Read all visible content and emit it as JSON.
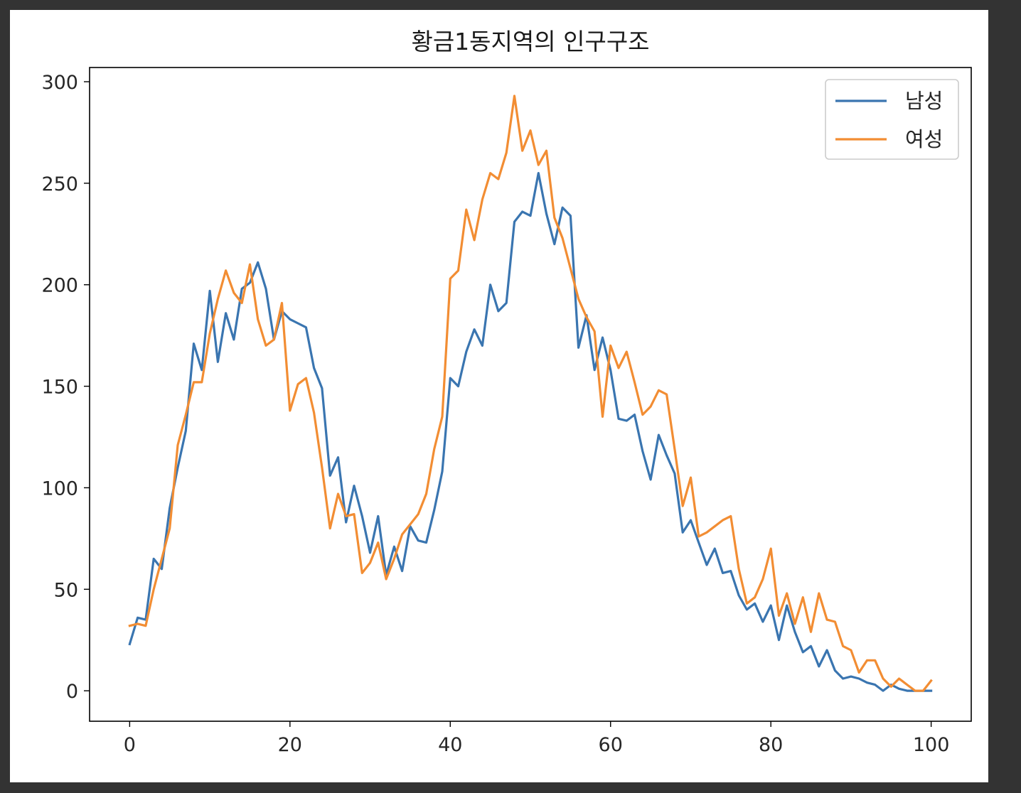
{
  "chart_data": {
    "type": "line",
    "title": "황금1동지역의 인구구조",
    "xlabel": "",
    "ylabel": "",
    "xlim": [
      -5,
      105
    ],
    "ylim": [
      -15,
      307
    ],
    "xticks": [
      0,
      20,
      40,
      60,
      80,
      100
    ],
    "yticks": [
      0,
      50,
      100,
      150,
      200,
      250,
      300
    ],
    "grid": false,
    "legend_position": "top-right",
    "x": [
      0,
      1,
      2,
      3,
      4,
      5,
      6,
      7,
      8,
      9,
      10,
      11,
      12,
      13,
      14,
      15,
      16,
      17,
      18,
      19,
      20,
      21,
      22,
      23,
      24,
      25,
      26,
      27,
      28,
      29,
      30,
      31,
      32,
      33,
      34,
      35,
      36,
      37,
      38,
      39,
      40,
      41,
      42,
      43,
      44,
      45,
      46,
      47,
      48,
      49,
      50,
      51,
      52,
      53,
      54,
      55,
      56,
      57,
      58,
      59,
      60,
      61,
      62,
      63,
      64,
      65,
      66,
      67,
      68,
      69,
      70,
      71,
      72,
      73,
      74,
      75,
      76,
      77,
      78,
      79,
      80,
      81,
      82,
      83,
      84,
      85,
      86,
      87,
      88,
      89,
      90,
      91,
      92,
      93,
      94,
      95,
      96,
      97,
      98,
      99,
      100
    ],
    "series": [
      {
        "name": "남성",
        "color": "#3a75b0",
        "values": [
          23,
          36,
          35,
          65,
          60,
          90,
          110,
          128,
          171,
          158,
          197,
          162,
          186,
          173,
          198,
          201,
          211,
          198,
          173,
          187,
          183,
          181,
          179,
          159,
          149,
          106,
          115,
          83,
          101,
          86,
          68,
          86,
          57,
          71,
          59,
          81,
          74,
          73,
          89,
          108,
          154,
          150,
          167,
          178,
          170,
          200,
          187,
          191,
          231,
          236,
          234,
          255,
          235,
          220,
          238,
          234,
          169,
          185,
          158,
          174,
          158,
          134,
          133,
          136,
          118,
          104,
          126,
          116,
          107,
          78,
          84,
          73,
          62,
          70,
          58,
          59,
          47,
          40,
          43,
          34,
          42,
          25,
          42,
          29,
          19,
          22,
          12,
          20,
          10,
          6,
          7,
          6,
          4,
          3,
          0,
          3,
          1,
          0,
          0,
          0,
          0
        ],
        "color_note": "blue"
      },
      {
        "name": "여성",
        "color": "#f28d33",
        "values": [
          32,
          33,
          32,
          50,
          65,
          80,
          121,
          136,
          152,
          152,
          176,
          193,
          207,
          196,
          191,
          210,
          183,
          170,
          173,
          191,
          138,
          151,
          154,
          137,
          110,
          80,
          97,
          86,
          87,
          58,
          63,
          73,
          55,
          65,
          77,
          82,
          87,
          97,
          119,
          135,
          203,
          207,
          237,
          222,
          242,
          255,
          252,
          265,
          293,
          266,
          276,
          259,
          266,
          233,
          223,
          208,
          193,
          184,
          177,
          135,
          170,
          159,
          167,
          152,
          136,
          140,
          148,
          146,
          119,
          91,
          105,
          76,
          78,
          81,
          84,
          86,
          60,
          43,
          46,
          55,
          70,
          37,
          48,
          33,
          46,
          29,
          48,
          35,
          34,
          22,
          20,
          9,
          15,
          15,
          6,
          2,
          6,
          3,
          0,
          0,
          5
        ]
      }
    ]
  }
}
